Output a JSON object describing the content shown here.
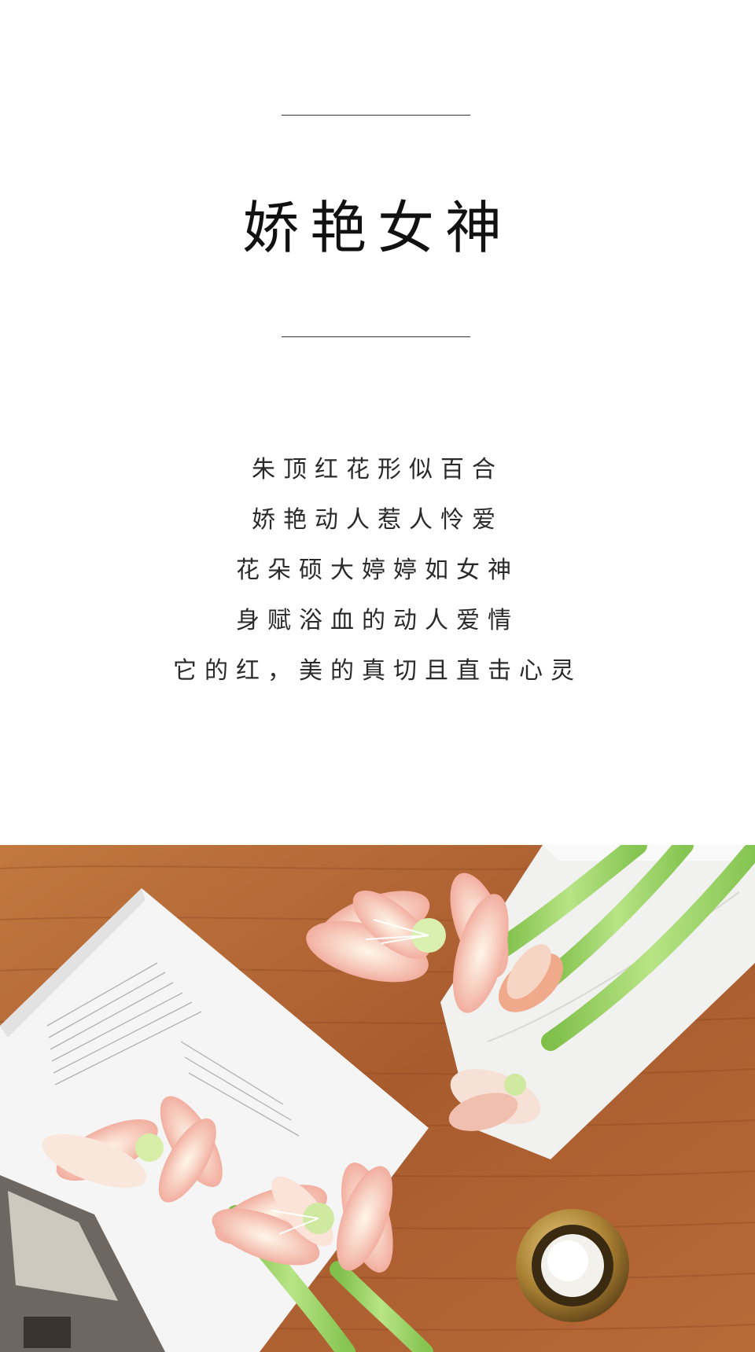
{
  "title": "娇艳女神",
  "poem": [
    "朱顶红花形似百合",
    "娇艳动人惹人怜爱",
    "花朵硕大婷婷如女神",
    "身赋浴血的动人爱情",
    "它的红，美的真切且直击心灵"
  ],
  "photo": {
    "subject": "Pale pink amaryllis flowers on a wooden table with an open book, marble tray and a brass tealight candle holder",
    "colors": {
      "wood": "#b5683a",
      "petal": "#f6c9bd",
      "stem": "#9ed36a",
      "book": "#f2f2f2",
      "brass": "#b8923f"
    }
  }
}
